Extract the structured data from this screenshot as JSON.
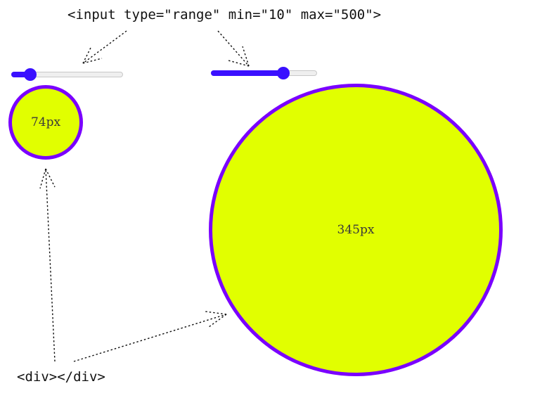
{
  "labels": {
    "input_code": "<input type=\"range\" min=\"10\" max=\"500\">",
    "div_code": "<div></div>"
  },
  "sliders": [
    {
      "min": 10,
      "max": 500,
      "value": 74,
      "fill_fraction": 0.17
    },
    {
      "min": 10,
      "max": 500,
      "value": 345,
      "fill_fraction": 0.68
    }
  ],
  "circles": [
    {
      "label": "74px"
    },
    {
      "label": "345px"
    }
  ],
  "colors": {
    "slider_accent": "#3a10ff",
    "circle_fill": "#e1ff00",
    "circle_border": "#7a00ff"
  }
}
